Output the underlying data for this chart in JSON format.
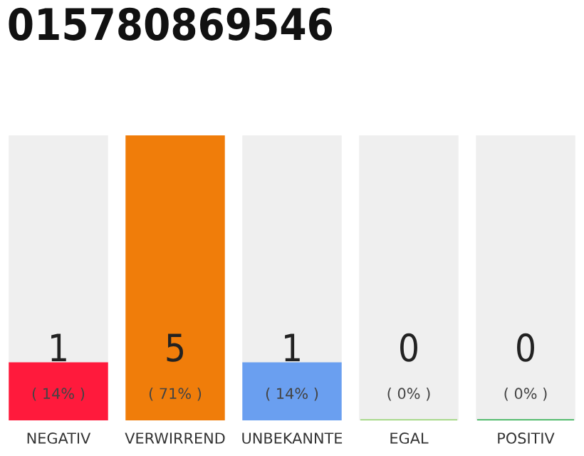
{
  "chart_data": {
    "type": "bar",
    "title": "015780869546",
    "categories": [
      "NEGATIV",
      "VERWIRREND",
      "UNBEKANNTE",
      "EGAL",
      "POSITIV"
    ],
    "stacked": true,
    "series": [
      {
        "colors": [
          "#ff1a3c",
          "#f07d0a",
          "#6a9ff0",
          "#8fd16a",
          "#22aa44"
        ],
        "values": [
          1,
          5,
          1,
          0,
          0
        ],
        "value_labels": [
          "1",
          "5",
          "1",
          "0",
          "0"
        ]
      },
      {
        "color": "#efefef",
        "values": [
          4,
          0,
          4,
          5,
          5
        ]
      }
    ],
    "ylim": [
      0,
      5
    ],
    "tick_labels": "x",
    "annotations": [
      {
        "text": "( 14% )",
        "x": "NEGATIV",
        "y": 0
      },
      {
        "text": "( 71% )",
        "x": "VERWIRREND",
        "y": 0
      },
      {
        "text": "( 14% )",
        "x": "UNBEKANNTE",
        "y": 0
      },
      {
        "text": "( 0% )",
        "x": "EGAL",
        "y": 0
      },
      {
        "text": "( 0% )",
        "x": "POSITIV",
        "y": 0
      }
    ]
  }
}
